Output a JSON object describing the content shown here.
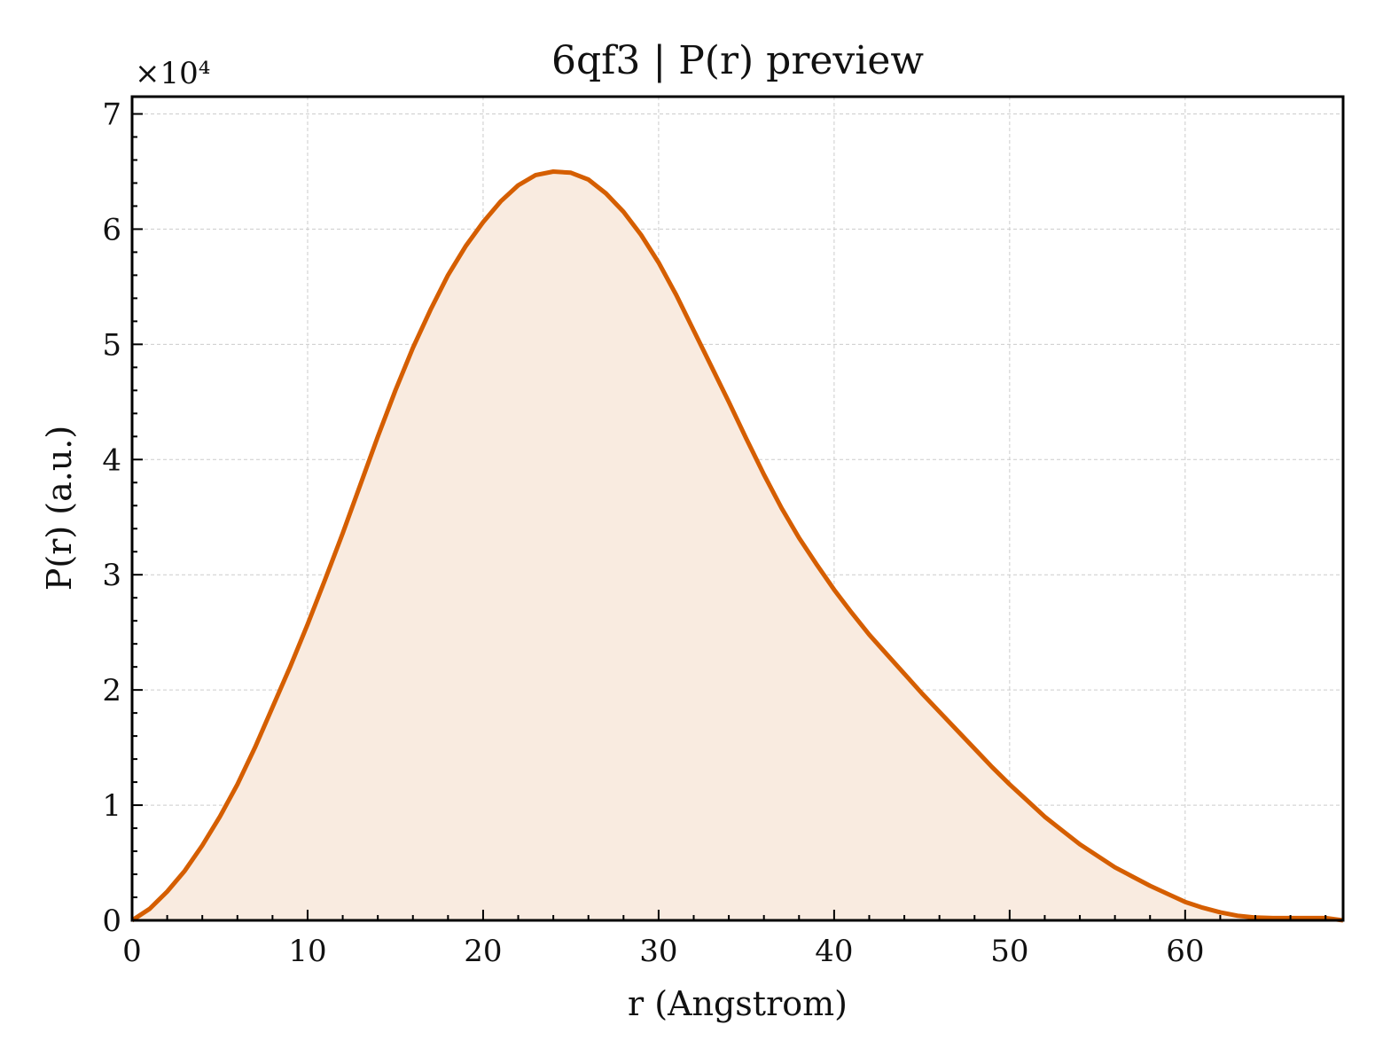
{
  "chart_data": {
    "type": "area",
    "title": "6qf3 | P(r) preview",
    "xlabel": "r (Angstrom)",
    "ylabel": "P(r) (a.u.)",
    "y_multiplier_label": "×10⁴",
    "y_scale_factor": 10000,
    "xlim": [
      0,
      69
    ],
    "ylim": [
      0,
      7.15
    ],
    "x_ticks": [
      0,
      10,
      20,
      30,
      40,
      50,
      60
    ],
    "y_ticks": [
      0,
      1,
      2,
      3,
      4,
      5,
      6,
      7
    ],
    "grid": true,
    "line_color": "#d55e00",
    "fill_color": "#f9ebe0",
    "series": [
      {
        "x": [
          0,
          1,
          2,
          3,
          4,
          5,
          6,
          7,
          8,
          9,
          10,
          11,
          12,
          13,
          14,
          15,
          16,
          17,
          18,
          19,
          20,
          21,
          22,
          23,
          24,
          25,
          26,
          27,
          28,
          29,
          30,
          31,
          32,
          33,
          34,
          35,
          36,
          37,
          38,
          39,
          40,
          41,
          42,
          43,
          44,
          45,
          46,
          47,
          48,
          49,
          50,
          51,
          52,
          53,
          54,
          55,
          56,
          57,
          58,
          59,
          60,
          61,
          62,
          63,
          64,
          65,
          66,
          67,
          68,
          69
        ],
        "y": [
          0,
          0.1,
          0.25,
          0.43,
          0.65,
          0.9,
          1.18,
          1.5,
          1.85,
          2.2,
          2.57,
          2.96,
          3.36,
          3.78,
          4.2,
          4.6,
          4.97,
          5.3,
          5.6,
          5.85,
          6.06,
          6.24,
          6.38,
          6.47,
          6.5,
          6.49,
          6.43,
          6.31,
          6.15,
          5.95,
          5.71,
          5.43,
          5.12,
          4.81,
          4.5,
          4.18,
          3.87,
          3.58,
          3.32,
          3.09,
          2.87,
          2.67,
          2.48,
          2.31,
          2.14,
          1.97,
          1.81,
          1.65,
          1.49,
          1.33,
          1.18,
          1.04,
          0.9,
          0.78,
          0.66,
          0.56,
          0.46,
          0.38,
          0.3,
          0.23,
          0.16,
          0.11,
          0.07,
          0.04,
          0.025,
          0.02,
          0.02,
          0.02,
          0.02,
          0
        ]
      }
    ]
  }
}
